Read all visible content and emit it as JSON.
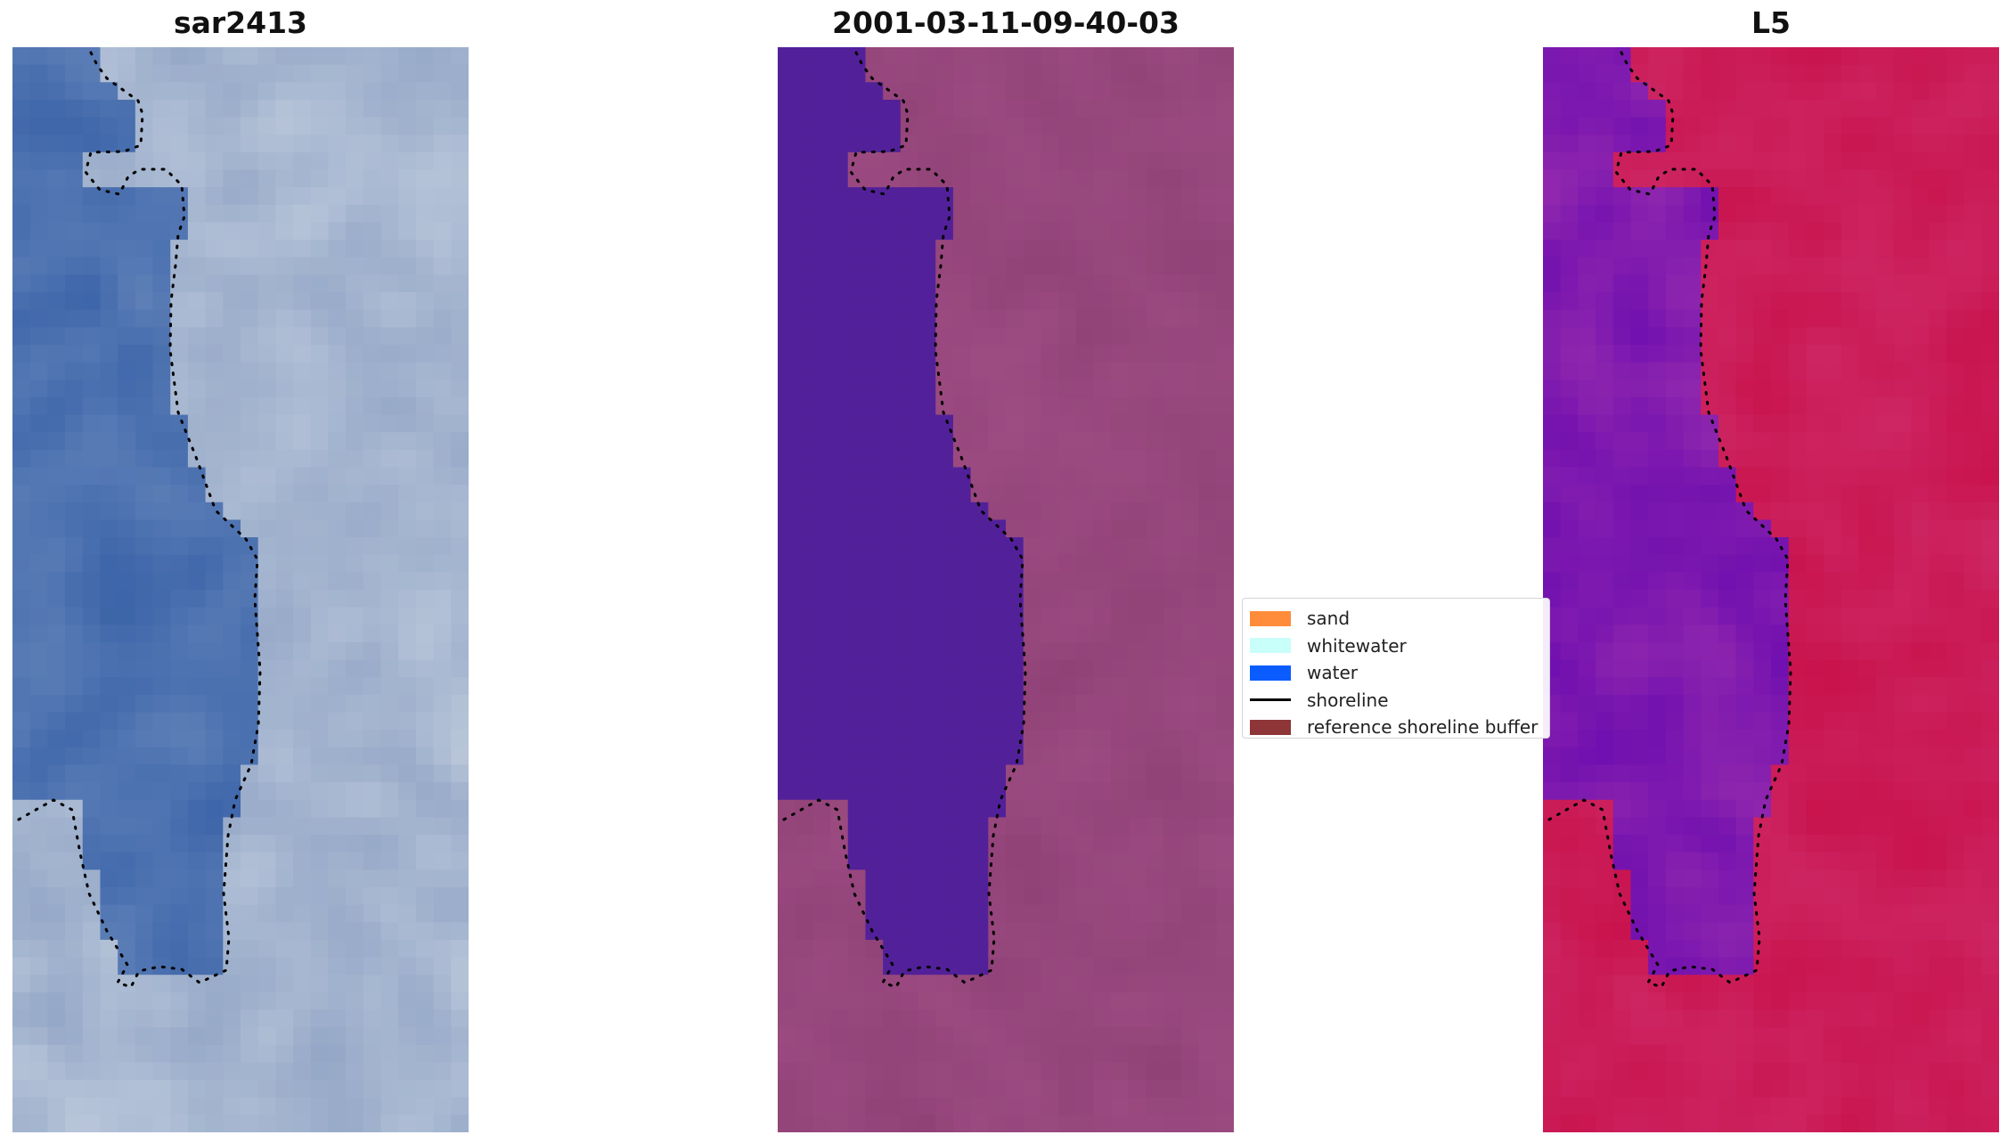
{
  "panels": [
    {
      "title": "sar2413",
      "kind": "rgb"
    },
    {
      "title": "2001-03-11-09-40-03",
      "kind": "classified"
    },
    {
      "title": "L5",
      "kind": "index"
    }
  ],
  "legend": {
    "items": [
      {
        "label": "sand",
        "color": "#ff8c3a",
        "type": "patch"
      },
      {
        "label": "whitewater",
        "color": "#c9fffb",
        "type": "patch"
      },
      {
        "label": "water",
        "color": "#0a5cff",
        "type": "patch"
      },
      {
        "label": "shoreline",
        "color": "#000000",
        "type": "line"
      },
      {
        "label": "reference shoreline buffer",
        "color": "#8e3537",
        "type": "patch"
      }
    ]
  },
  "colors": {
    "rgb_water": "#3a63a8",
    "rgb_land": "#8fa3c4",
    "rgb_bright": "#dfe6ee",
    "class_water": "#52219a",
    "class_land": "#8f4176",
    "index_water": "#6a0bb0",
    "index_land": "#c8104a",
    "shoreline": "#000000"
  }
}
